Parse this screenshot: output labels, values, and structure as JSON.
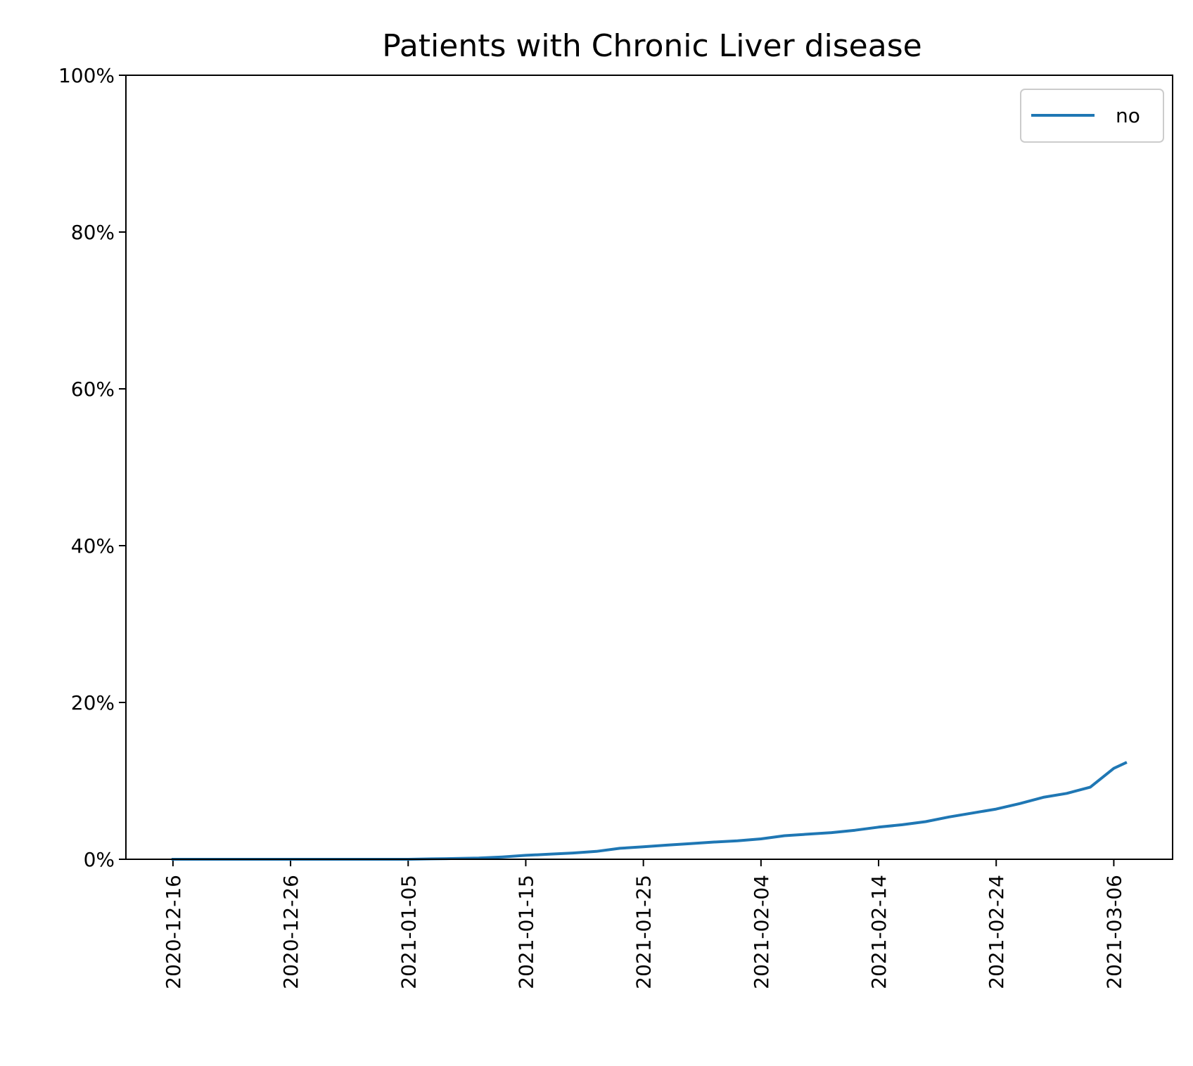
{
  "chart_data": {
    "type": "line",
    "title": "Patients with Chronic Liver disease",
    "xlabel": "",
    "ylabel": "",
    "ylim": [
      0,
      100
    ],
    "y_unit": "%",
    "y_ticks": [
      "0%",
      "20%",
      "40%",
      "60%",
      "80%",
      "100%"
    ],
    "y_tick_values": [
      0,
      20,
      40,
      60,
      80,
      100
    ],
    "x_ticks": [
      "2020-12-16",
      "2020-12-26",
      "2021-01-05",
      "2021-01-15",
      "2021-01-25",
      "2021-02-04",
      "2021-02-14",
      "2021-02-24",
      "2021-03-06"
    ],
    "xlim": [
      "2020-12-12",
      "2021-03-11"
    ],
    "legend": {
      "placement": "top-right",
      "entries": [
        "no"
      ]
    },
    "grid": false,
    "colors": {
      "series": "#1f77b4"
    },
    "series": [
      {
        "name": "no",
        "x": [
          "2020-12-16",
          "2020-12-18",
          "2020-12-20",
          "2020-12-22",
          "2020-12-24",
          "2020-12-26",
          "2020-12-28",
          "2020-12-30",
          "2021-01-01",
          "2021-01-03",
          "2021-01-05",
          "2021-01-07",
          "2021-01-09",
          "2021-01-11",
          "2021-01-13",
          "2021-01-15",
          "2021-01-17",
          "2021-01-19",
          "2021-01-21",
          "2021-01-23",
          "2021-01-25",
          "2021-01-27",
          "2021-01-29",
          "2021-01-31",
          "2021-02-02",
          "2021-02-04",
          "2021-02-06",
          "2021-02-08",
          "2021-02-10",
          "2021-02-12",
          "2021-02-14",
          "2021-02-16",
          "2021-02-18",
          "2021-02-20",
          "2021-02-22",
          "2021-02-24",
          "2021-02-26",
          "2021-02-28",
          "2021-03-02",
          "2021-03-04",
          "2021-03-06",
          "2021-03-07"
        ],
        "values": [
          0,
          0,
          0,
          0,
          0,
          0,
          0,
          0,
          0,
          0,
          0,
          0.05,
          0.1,
          0.15,
          0.3,
          0.5,
          0.65,
          0.8,
          1.0,
          1.4,
          1.6,
          1.8,
          2.0,
          2.2,
          2.35,
          2.6,
          3.0,
          3.2,
          3.4,
          3.7,
          4.1,
          4.4,
          4.8,
          5.4,
          5.9,
          6.4,
          7.1,
          7.9,
          8.4,
          9.2,
          11.6,
          12.3
        ]
      }
    ]
  }
}
